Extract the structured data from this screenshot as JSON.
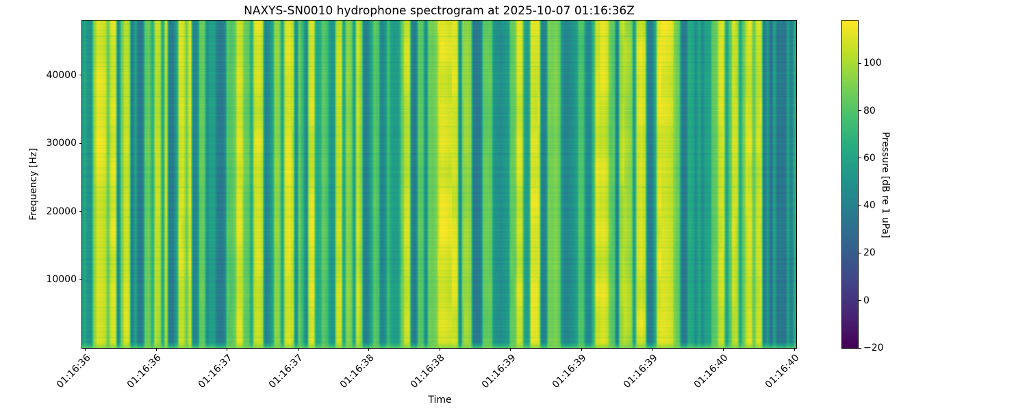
{
  "figure": {
    "background_color": "#ffffff",
    "text_color": "#000000"
  },
  "chart_data": {
    "type": "heatmap",
    "subtype": "spectrogram",
    "title": "NAXYS-SN0010 hydrophone spectrogram at 2025-10-07 01:16:36Z",
    "xlabel": "Time",
    "ylabel": "Frequency [Hz]",
    "x_tick_labels": [
      "01:16:36",
      "01:16:36",
      "01:16:37",
      "01:16:37",
      "01:16:38",
      "01:16:38",
      "01:16:39",
      "01:16:39",
      "01:16:39",
      "01:16:40",
      "01:16:40"
    ],
    "y_ticks": [
      40000,
      30000,
      20000,
      10000
    ],
    "y_tick_labels": [
      "40000",
      "30000",
      "20000",
      "10000"
    ],
    "ylim": [
      0,
      48000
    ],
    "grid": false,
    "colorbar": {
      "label": "Pressure [dB re 1 uPa]",
      "ticks": [
        100,
        80,
        60,
        40,
        20,
        0,
        -20
      ],
      "tick_labels": [
        "100",
        "80",
        "60",
        "40",
        "20",
        "0",
        "−20"
      ],
      "vmin": -20,
      "vmax": 118,
      "colormap": "viridis",
      "position": "right"
    },
    "colormap_stops": [
      "#440154",
      "#482475",
      "#414487",
      "#355f8d",
      "#2a788e",
      "#21918c",
      "#22a884",
      "#44bf70",
      "#7ad151",
      "#bddf26",
      "#fde725"
    ],
    "column_profile_db": [
      66,
      52,
      50,
      96,
      112,
      110,
      108,
      86,
      110,
      112,
      42,
      88,
      108,
      106,
      38,
      60,
      36,
      38,
      85,
      86,
      66,
      104,
      102,
      62,
      106,
      36,
      38,
      56,
      110,
      108,
      88,
      112,
      42,
      44,
      85,
      86,
      48,
      58,
      58,
      38,
      36,
      40,
      82,
      80,
      84,
      110,
      108,
      86,
      84,
      64,
      108,
      110,
      106,
      42,
      46,
      58,
      95,
      92,
      60,
      108,
      110,
      104,
      44,
      86,
      70,
      42,
      108,
      110,
      62,
      66,
      85,
      78,
      55,
      50,
      105,
      108,
      60,
      95,
      90,
      58,
      108,
      95,
      38,
      42,
      60,
      84,
      78,
      40,
      48,
      75,
      58,
      55,
      58,
      85,
      106,
      108,
      40,
      38,
      84,
      82,
      46,
      88,
      86,
      90,
      111,
      112,
      110,
      108,
      110,
      109,
      44,
      95,
      96,
      94,
      37,
      36,
      38,
      85,
      84,
      86,
      52,
      50,
      48,
      52,
      54,
      85,
      84,
      108,
      106,
      58,
      56,
      112,
      110,
      111,
      40,
      42,
      90,
      88,
      92,
      86,
      48,
      42,
      45,
      50,
      55,
      80,
      78,
      46,
      44,
      70,
      110,
      108,
      110,
      106,
      84,
      82,
      38,
      98,
      104,
      100,
      96,
      55,
      108,
      110,
      106,
      38,
      36,
      58,
      110,
      112,
      112,
      110,
      108,
      90,
      85,
      38,
      36,
      65,
      62,
      48,
      62,
      46,
      60,
      58,
      82,
      84,
      106,
      108,
      58,
      80,
      108,
      106,
      62,
      86,
      108,
      110,
      84,
      106,
      108,
      36,
      55,
      30,
      58,
      34,
      36,
      32,
      56,
      38,
      65
    ]
  }
}
